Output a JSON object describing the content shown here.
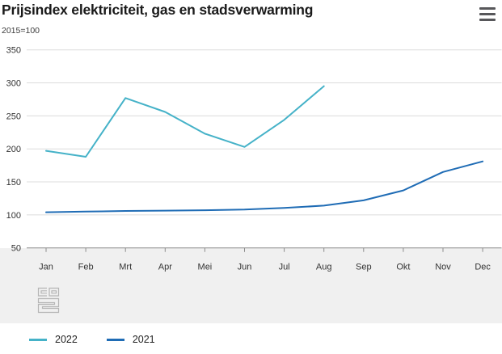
{
  "header": {
    "title": "Prijsindex elektriciteit, gas en stadsverwarming",
    "menu_icon": "hamburger-icon"
  },
  "chart_data": {
    "type": "line",
    "title": "Prijsindex elektriciteit, gas en stadsverwarming",
    "subtitle": "2015=100",
    "categories": [
      "Jan",
      "Feb",
      "Mrt",
      "Apr",
      "Mei",
      "Jun",
      "Jul",
      "Aug",
      "Sep",
      "Okt",
      "Nov",
      "Dec"
    ],
    "series": [
      {
        "name": "2022",
        "color": "#45b2c8",
        "values": [
          197,
          188,
          277,
          256,
          223,
          203,
          244,
          295
        ]
      },
      {
        "name": "2021",
        "color": "#1f6cb5",
        "values": [
          104,
          105,
          106,
          106.5,
          107,
          108,
          110.5,
          114,
          122,
          137,
          165,
          181
        ]
      }
    ],
    "ylim": [
      50,
      350
    ],
    "yticks": [
      50,
      100,
      150,
      200,
      250,
      300,
      350
    ],
    "grid": true,
    "legend_position": "bottom",
    "colors": {
      "gridline": "#dcdcdc",
      "axis": "#8c8c8c",
      "tick_label": "#333333",
      "band_background": "#f0f0f0"
    }
  },
  "logo": {
    "name": "cbs-logo"
  },
  "legend": {
    "items": [
      {
        "label": "2022"
      },
      {
        "label": "2021"
      }
    ]
  }
}
